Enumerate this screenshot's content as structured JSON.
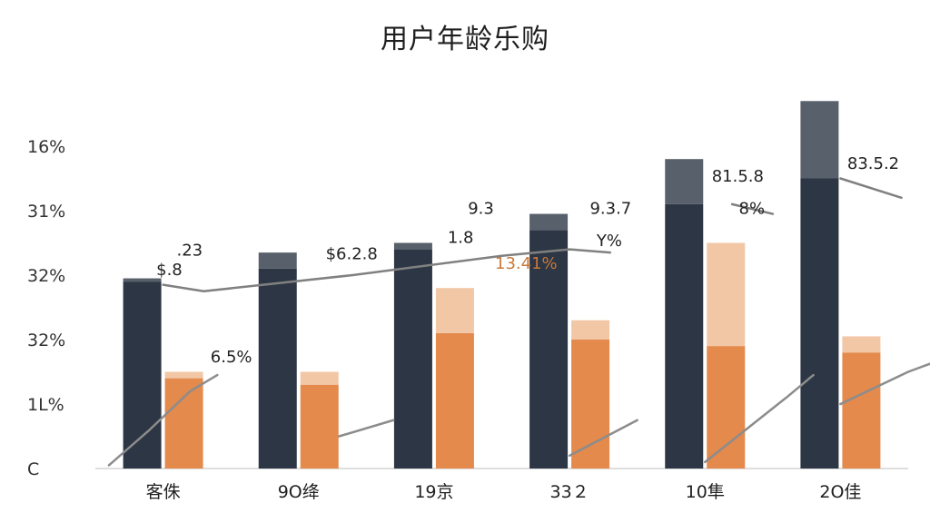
{
  "chart_data": {
    "type": "bar",
    "title": "用户年龄乐购",
    "xlabel": "",
    "ylabel": "",
    "categories": [
      "客侏",
      "9O绛",
      "19京",
      "33２",
      "10隼",
      "2O佳"
    ],
    "ytick_labels": [
      "C",
      "1L%",
      "32%",
      "32%",
      "31%",
      "16%"
    ],
    "ylim": [
      0,
      6
    ],
    "grid": false,
    "legend": "none",
    "series": [
      {
        "values": [
          2.9,
          3.1,
          3.4,
          3.7,
          4.1,
          4.5
        ],
        "top_segment": [
          0.05,
          0.25,
          0.1,
          0.25,
          0.7,
          1.2
        ],
        "color": "#2d3644",
        "top_color": "#58606b"
      },
      {
        "values": [
          1.4,
          1.3,
          2.1,
          2.0,
          1.9,
          1.8
        ],
        "top_segment": [
          0.1,
          0.2,
          0.7,
          0.3,
          1.6,
          0.25
        ],
        "color": "#e38a4c",
        "top_color": "#f1c7a6"
      }
    ],
    "trend_lines": [
      {
        "name": "upper",
        "color": "#808080",
        "segments": [
          [
            [
              1.0,
              2.85
            ],
            [
              1.3,
              2.75
            ],
            [
              2.4,
              3.0
            ],
            [
              3.5,
              3.3
            ],
            [
              4.0,
              3.4
            ],
            [
              4.3,
              3.35
            ]
          ],
          [
            [
              5.2,
              4.1
            ],
            [
              5.5,
              3.95
            ]
          ],
          [
            [
              6.0,
              4.5
            ],
            [
              6.45,
              4.2
            ]
          ]
        ]
      },
      {
        "name": "lower",
        "color": "#8c8c8c",
        "segments": [
          [
            [
              0.6,
              0.05
            ],
            [
              0.9,
              0.6
            ],
            [
              1.2,
              1.2
            ],
            [
              1.4,
              1.45
            ]
          ],
          [
            [
              2.3,
              0.5
            ],
            [
              2.7,
              0.75
            ]
          ],
          [
            [
              4.0,
              0.2
            ],
            [
              4.5,
              0.75
            ]
          ],
          [
            [
              5.0,
              0.1
            ],
            [
              5.6,
              1.1
            ],
            [
              5.8,
              1.45
            ]
          ],
          [
            [
              6.0,
              1.0
            ],
            [
              6.5,
              1.5
            ],
            [
              6.95,
              1.85
            ]
          ]
        ]
      }
    ],
    "data_labels": [
      {
        "text": ".23",
        "x": 1.1,
        "y": 3.3,
        "color": "dark"
      },
      {
        "text": "$.8",
        "x": 0.95,
        "y": 3.0,
        "color": "dark"
      },
      {
        "text": "6.5%",
        "x": 1.35,
        "y": 1.65,
        "color": "dark"
      },
      {
        "text": "$6.2.8",
        "x": 2.2,
        "y": 3.25,
        "color": "dark"
      },
      {
        "text": "9.3",
        "x": 3.25,
        "y": 3.95,
        "color": "dark"
      },
      {
        "text": "1.8",
        "x": 3.1,
        "y": 3.5,
        "color": "dark"
      },
      {
        "text": "13.41%",
        "x": 3.45,
        "y": 3.1,
        "color": "orange"
      },
      {
        "text": "9.3.7",
        "x": 4.15,
        "y": 3.95,
        "color": "dark"
      },
      {
        "text": "Y%",
        "x": 4.2,
        "y": 3.45,
        "color": "dark"
      },
      {
        "text": "81.5.8",
        "x": 5.05,
        "y": 4.45,
        "color": "dark"
      },
      {
        "text": "8%",
        "x": 5.25,
        "y": 3.95,
        "color": "dark"
      },
      {
        "text": "83.5.2",
        "x": 6.05,
        "y": 4.65,
        "color": "dark"
      }
    ]
  }
}
